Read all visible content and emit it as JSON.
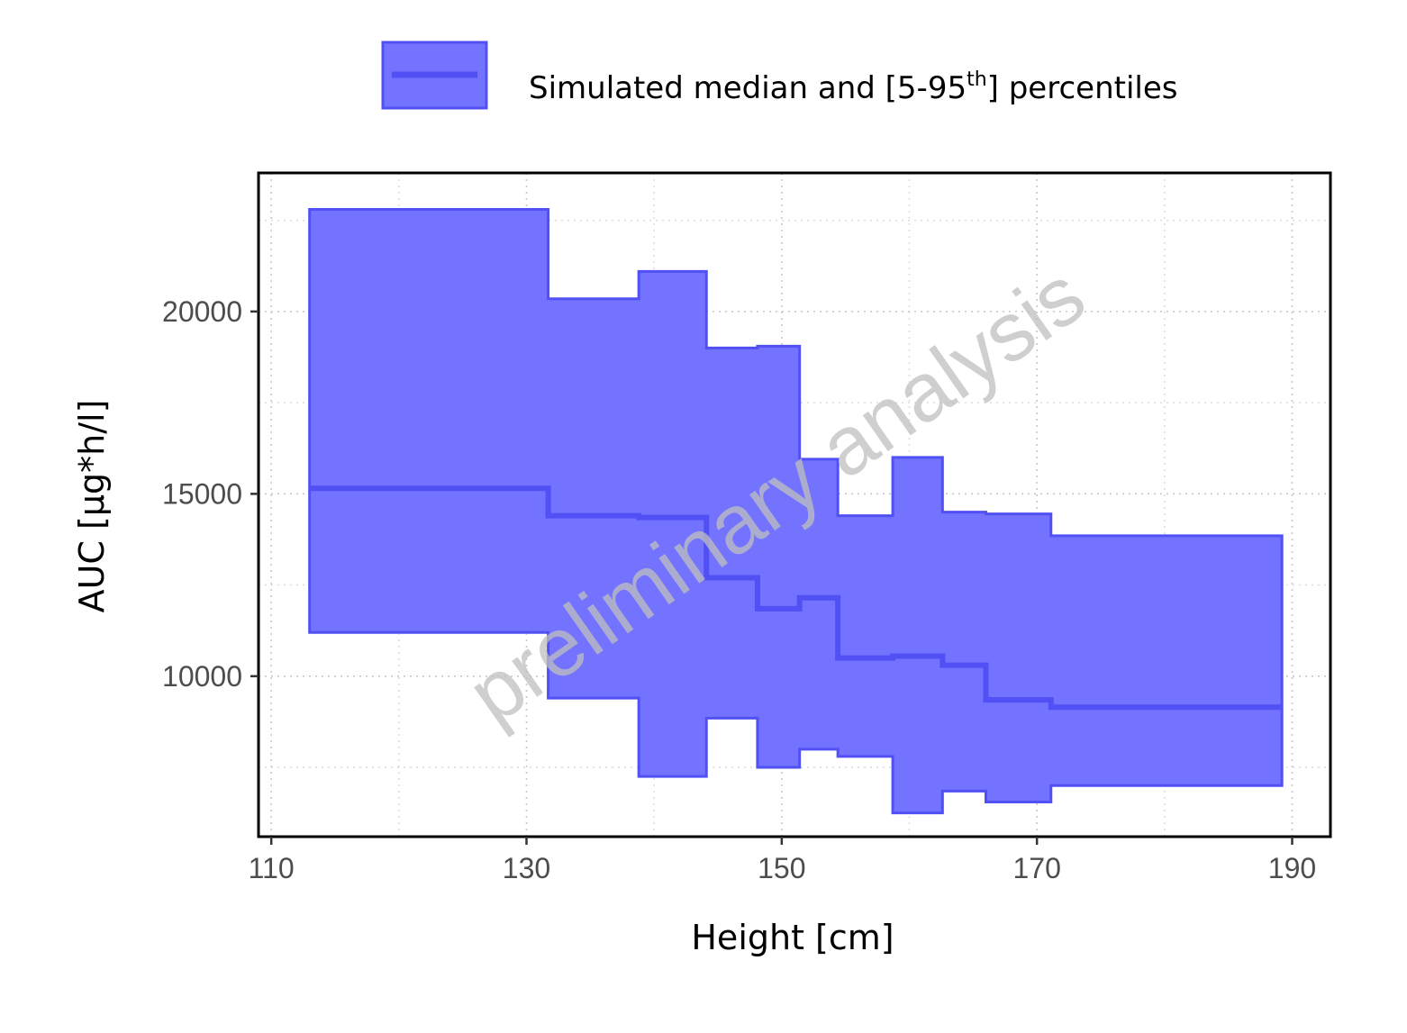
{
  "legend": {
    "label_main": "Simulated median and [5-95",
    "label_sup": "th",
    "label_end": "] percentiles",
    "fill_color": "#7373ff",
    "line_color": "#5050f5"
  },
  "watermark": "preliminary analysis",
  "chart_data": {
    "type": "area",
    "xlabel": "Height [cm]",
    "ylabel": "AUC [µg*h/l]",
    "xlim": [
      109,
      193
    ],
    "ylim": [
      5600,
      23800
    ],
    "x_ticks": [
      110,
      130,
      150,
      170,
      190
    ],
    "y_ticks": [
      10000,
      15000,
      20000
    ],
    "grid": true,
    "legend_position": "top",
    "step_x": [
      113.0,
      131.7,
      138.8,
      144.1,
      148.1,
      151.4,
      154.4,
      158.7,
      162.6,
      166.0,
      171.1,
      189.2
    ],
    "series": [
      {
        "name": "Simulated median and [5-95th] percentiles",
        "median": [
          15150,
          14400,
          14350,
          12700,
          11850,
          12150,
          10500,
          10550,
          10300,
          9350,
          9150
        ],
        "p05": [
          11200,
          9400,
          7250,
          8850,
          7500,
          8000,
          7800,
          6250,
          6850,
          6550,
          7000
        ],
        "p95": [
          22800,
          20350,
          21100,
          19000,
          19050,
          15950,
          14400,
          16000,
          14500,
          14450,
          13850
        ]
      }
    ]
  }
}
